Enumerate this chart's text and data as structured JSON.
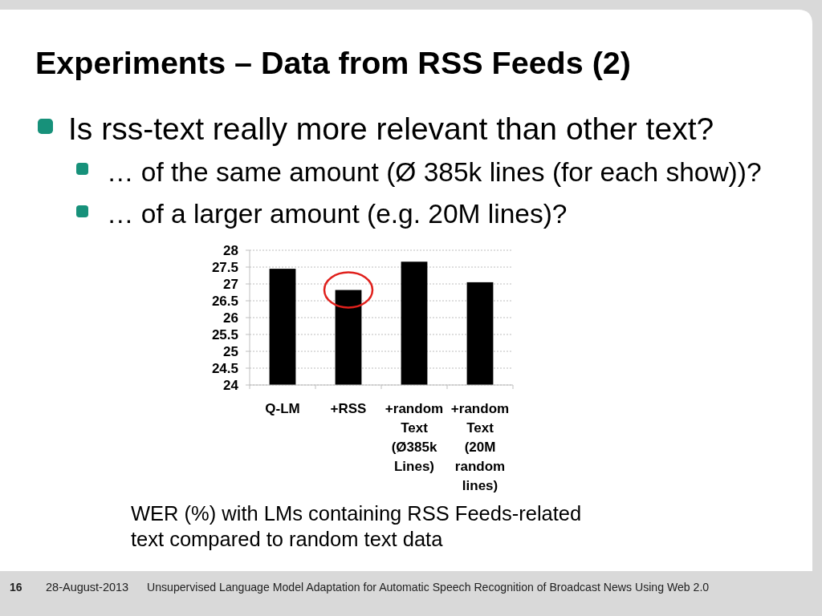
{
  "chart_data": {
    "type": "bar",
    "title": "Experiments – Data from RSS Feeds (2)",
    "categories": [
      "Q-LM",
      "+RSS",
      "+random Text (Ø385k Lines)",
      "+random Text (20M random lines)"
    ],
    "values": [
      27.45,
      26.82,
      27.66,
      27.05
    ],
    "color": "#000000",
    "ylim": [
      24,
      28
    ],
    "yticks": [
      24,
      24.5,
      25,
      25.5,
      26,
      26.5,
      27,
      27.5,
      28
    ],
    "grid": "y",
    "annotations": [
      "Is rss-text really more relevant than other text?",
      "… of the same amount (Ø 385k lines (for each show))?",
      "… of a larger amount (e.g. 20M lines)?",
      "WER (%) with LMs containing RSS Feeds-related\ntext compared to random text data",
      "16",
      "28-August-2013",
      "Unsupervised Language Model Adaptation for Automatic Speech Recognition of Broadcast News Using Web 2.0"
    ]
  }
}
